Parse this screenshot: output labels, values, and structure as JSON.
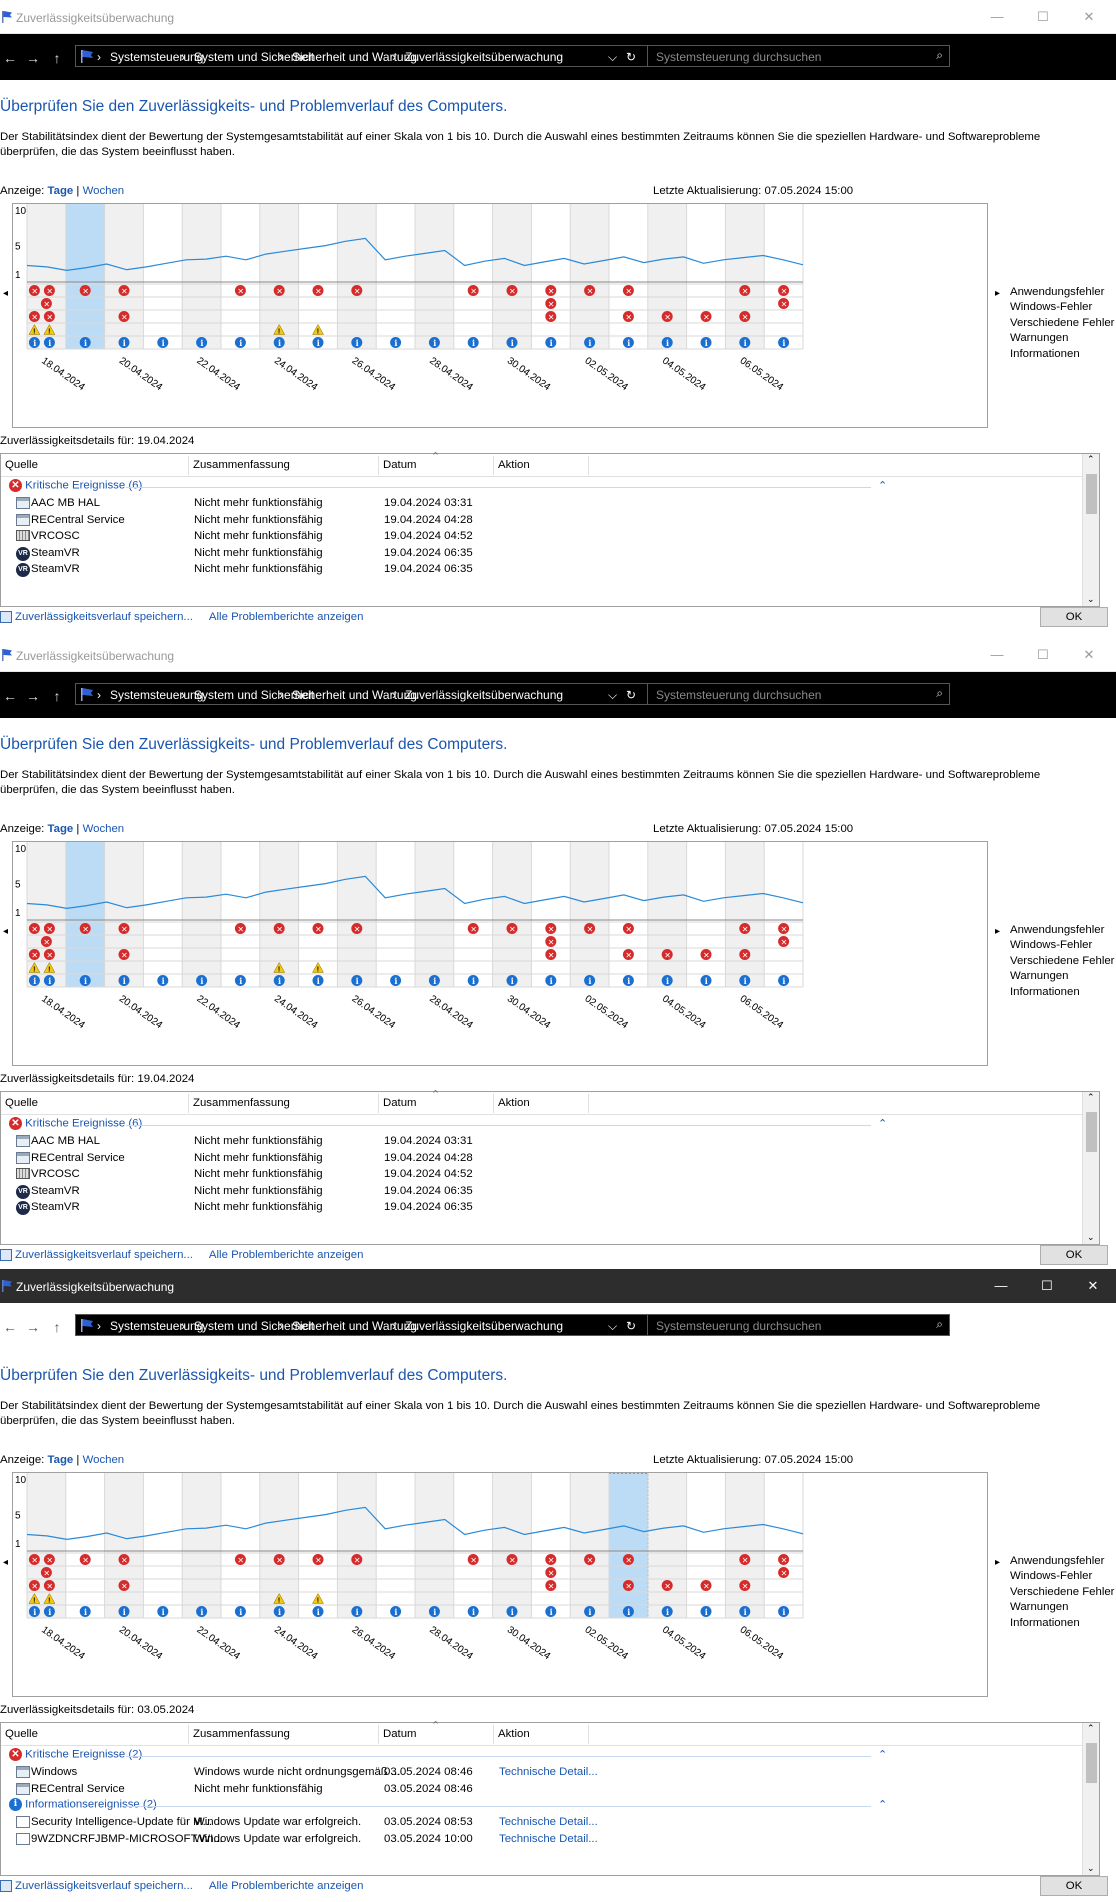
{
  "window": {
    "title": "Zuverlässigkeitsüberwachung",
    "min": "—",
    "max": "☐",
    "close": "✕"
  },
  "nav": {
    "back": "←",
    "forward": "→",
    "up": "↑",
    "breadcrumb": [
      "Systemsteuerung",
      "System und Sicherheit",
      "Sicherheit und Wartung",
      "Zuverlässigkeitsüberwachung"
    ],
    "crumb_sep": "›",
    "dropdown": "⌵",
    "refresh": "↻",
    "search_placeholder": "Systemsteuerung durchsuchen",
    "search_icon": "⌕"
  },
  "page": {
    "heading": "Überprüfen Sie den Zuverlässigkeits- und Problemverlauf des Computers.",
    "description": "Der Stabilitätsindex dient der Bewertung der Systemgesamtstabilität auf einer Skala von 1 bis 10. Durch die Auswahl eines bestimmten Zeitraums können Sie die speziellen Hardware- und Softwareprobleme überprüfen, die das System beeinflusst haben.",
    "view_label": "Anzeige:",
    "view_days": "Tage",
    "view_sep": "|",
    "view_weeks": "Wochen",
    "last_update": "Letzte Aktualisierung: 07.05.2024 15:00"
  },
  "chart_data": {
    "type": "line",
    "y_ticks": [
      "10",
      "5",
      "1"
    ],
    "ylim": [
      1,
      10
    ],
    "x_labels": [
      "18.04.2024",
      "20.04.2024",
      "22.04.2024",
      "24.04.2024",
      "26.04.2024",
      "28.04.2024",
      "30.04.2024",
      "02.05.2024",
      "04.05.2024",
      "06.05.2024"
    ],
    "columns": 20,
    "stability_index": [
      2.2,
      2.0,
      1.5,
      1.9,
      2.4,
      1.6,
      2.0,
      2.5,
      3.0,
      3.1,
      3.5,
      3.0,
      3.8,
      4.2,
      4.6,
      5.0,
      5.6,
      6.0,
      3.0,
      3.5,
      3.9,
      4.3,
      2.2,
      2.8,
      3.2,
      2.2,
      2.7,
      3.2,
      2.4,
      2.9,
      3.4,
      2.6,
      3.1,
      3.4,
      2.5,
      3.0,
      3.3,
      3.6,
      3.0,
      2.3
    ],
    "legend": [
      "Anwendungsfehler",
      "Windows-Fehler",
      "Verschiedene Fehler",
      "Warnungen",
      "Informationen"
    ],
    "events": {
      "Anwendungsfehler": [
        [
          0,
          2
        ],
        [
          1,
          1
        ],
        [
          2,
          1
        ],
        [
          5,
          1
        ],
        [
          6,
          1
        ],
        [
          7,
          1
        ],
        [
          8,
          1
        ],
        [
          11,
          1
        ],
        [
          12,
          1
        ],
        [
          13,
          1
        ],
        [
          14,
          1
        ],
        [
          15,
          1
        ],
        [
          18,
          1
        ],
        [
          19,
          1
        ]
      ],
      "Windows-Fehler": [
        [
          0,
          1
        ],
        [
          13,
          1
        ],
        [
          19,
          1
        ]
      ],
      "Verschiedene Fehler": [
        [
          0,
          2
        ],
        [
          2,
          1
        ],
        [
          13,
          1
        ],
        [
          15,
          1
        ],
        [
          16,
          1
        ],
        [
          17,
          1
        ],
        [
          18,
          1
        ]
      ],
      "Warnungen": [
        [
          0,
          2
        ],
        [
          6,
          1
        ],
        [
          7,
          1
        ]
      ],
      "Informationen": [
        [
          0,
          2
        ],
        [
          1,
          1
        ],
        [
          2,
          1
        ],
        [
          3,
          1
        ],
        [
          4,
          1
        ],
        [
          5,
          1
        ],
        [
          6,
          1
        ],
        [
          7,
          1
        ],
        [
          8,
          1
        ],
        [
          9,
          1
        ],
        [
          10,
          1
        ],
        [
          11,
          1
        ],
        [
          12,
          1
        ],
        [
          13,
          1
        ],
        [
          14,
          1
        ],
        [
          15,
          1
        ],
        [
          16,
          1
        ],
        [
          17,
          1
        ],
        [
          18,
          1
        ],
        [
          19,
          1
        ]
      ]
    },
    "glyphs": {
      "error": "✕",
      "warning": "!",
      "info": "i"
    }
  },
  "panels": [
    {
      "selected_column": 1,
      "details_label": "Zuverlässigkeitsdetails für: 19.04.2024",
      "columns": {
        "source": "Quelle",
        "summary": "Zusammenfassung",
        "date": "Datum",
        "action": "Aktion"
      },
      "groups": [
        {
          "type": "error",
          "title": "Kritische Ereignisse (6)",
          "rows": [
            {
              "icon": "app",
              "source": "AAC MB HAL",
              "summary": "Nicht mehr funktionsfähig",
              "date": "19.04.2024 03:31",
              "action": ""
            },
            {
              "icon": "app",
              "source": "RECentral Service",
              "summary": "Nicht mehr funktionsfähig",
              "date": "19.04.2024 04:28",
              "action": ""
            },
            {
              "icon": "kbd",
              "source": "VRCOSC",
              "summary": "Nicht mehr funktionsfähig",
              "date": "19.04.2024 04:52",
              "action": ""
            },
            {
              "icon": "vr",
              "source": "SteamVR",
              "summary": "Nicht mehr funktionsfähig",
              "date": "19.04.2024 06:35",
              "action": ""
            },
            {
              "icon": "vr",
              "source": "SteamVR",
              "summary": "Nicht mehr funktionsfähig",
              "date": "19.04.2024 06:35",
              "action": ""
            }
          ]
        }
      ],
      "footer_save": "Zuverlässigkeitsverlauf speichern...",
      "footer_reports": "Alle Problemberichte anzeigen",
      "ok": "OK"
    },
    {
      "selected_column": 1,
      "details_label": "Zuverlässigkeitsdetails für: 19.04.2024",
      "columns": {
        "source": "Quelle",
        "summary": "Zusammenfassung",
        "date": "Datum",
        "action": "Aktion"
      },
      "groups": [
        {
          "type": "error",
          "title": "Kritische Ereignisse (6)",
          "rows": [
            {
              "icon": "app",
              "source": "AAC MB HAL",
              "summary": "Nicht mehr funktionsfähig",
              "date": "19.04.2024 03:31",
              "action": ""
            },
            {
              "icon": "app",
              "source": "RECentral Service",
              "summary": "Nicht mehr funktionsfähig",
              "date": "19.04.2024 04:28",
              "action": ""
            },
            {
              "icon": "kbd",
              "source": "VRCOSC",
              "summary": "Nicht mehr funktionsfähig",
              "date": "19.04.2024 04:52",
              "action": ""
            },
            {
              "icon": "vr",
              "source": "SteamVR",
              "summary": "Nicht mehr funktionsfähig",
              "date": "19.04.2024 06:35",
              "action": ""
            },
            {
              "icon": "vr",
              "source": "SteamVR",
              "summary": "Nicht mehr funktionsfähig",
              "date": "19.04.2024 06:35",
              "action": ""
            }
          ]
        }
      ],
      "footer_save": "Zuverlässigkeitsverlauf speichern...",
      "footer_reports": "Alle Problemberichte anzeigen",
      "ok": "OK"
    },
    {
      "selected_column": 15,
      "details_label": "Zuverlässigkeitsdetails für: 03.05.2024",
      "columns": {
        "source": "Quelle",
        "summary": "Zusammenfassung",
        "date": "Datum",
        "action": "Aktion"
      },
      "groups": [
        {
          "type": "error",
          "title": "Kritische Ereignisse (2)",
          "rows": [
            {
              "icon": "app",
              "source": "Windows",
              "summary": "Windows wurde nicht ordnungsgemäß ...",
              "date": "03.05.2024 08:46",
              "action": "Technische Detail..."
            },
            {
              "icon": "app",
              "source": "RECentral Service",
              "summary": "Nicht mehr funktionsfähig",
              "date": "03.05.2024 08:46",
              "action": ""
            }
          ]
        },
        {
          "type": "info",
          "title": "Informationsereignisse (2)",
          "rows": [
            {
              "icon": "upd",
              "source": "Security Intelligence-Update für M...",
              "summary": "Windows Update war erfolgreich.",
              "date": "03.05.2024 08:53",
              "action": "Technische Detail..."
            },
            {
              "icon": "upd",
              "source": "9WZDNCRFJBMP-MICROSOFT.WI...",
              "summary": "Windows Update war erfolgreich.",
              "date": "03.05.2024 10:00",
              "action": "Technische Detail..."
            }
          ]
        }
      ],
      "footer_save": "Zuverlässigkeitsverlauf speichern...",
      "footer_reports": "Alle Problemberichte anzeigen",
      "ok": "OK"
    }
  ],
  "colors": {
    "accent": "#1a56b0",
    "line": "#2a8ad8",
    "selected": "#bcdcf5",
    "error": "#d62b2b",
    "warning": "#f2c811",
    "info": "#1a6fd1"
  }
}
